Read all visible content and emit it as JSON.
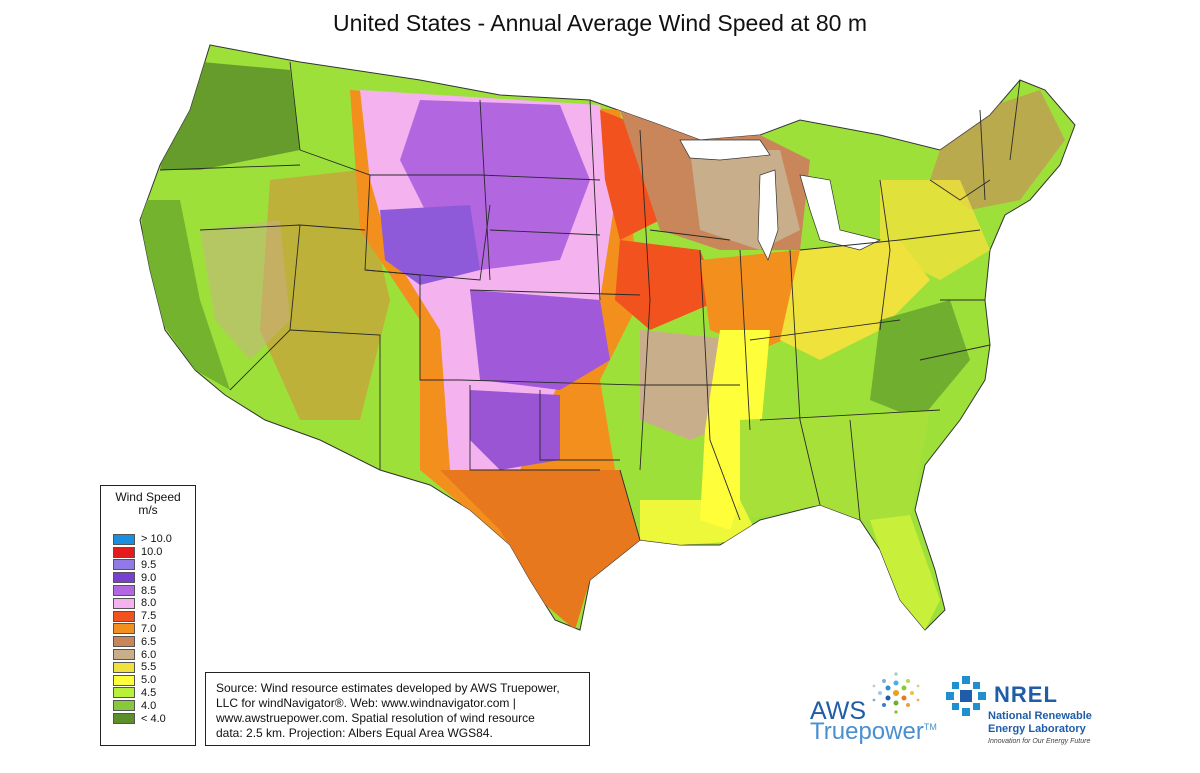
{
  "title": "United States - Annual Average Wind Speed at 80 m",
  "legend": {
    "heading_line1": "Wind Speed",
    "heading_line2": "m/s",
    "items": [
      {
        "label": "> 10.0",
        "color": "#1a8fe0"
      },
      {
        "label": "10.0",
        "color": "#e51a1a"
      },
      {
        "label": "9.5",
        "color": "#8f7ae6"
      },
      {
        "label": "9.0",
        "color": "#7a3fd1"
      },
      {
        "label": "8.5",
        "color": "#b266e0"
      },
      {
        "label": "8.0",
        "color": "#f4b3ef"
      },
      {
        "label": "7.5",
        "color": "#f2521d"
      },
      {
        "label": "7.0",
        "color": "#f28f1d"
      },
      {
        "label": "6.5",
        "color": "#c9865a"
      },
      {
        "label": "6.0",
        "color": "#c9ae8c"
      },
      {
        "label": "5.5",
        "color": "#f0e23c"
      },
      {
        "label": "5.0",
        "color": "#fffe3a"
      },
      {
        "label": "4.5",
        "color": "#b9f03a"
      },
      {
        "label": "4.0",
        "color": "#86c93a"
      },
      {
        "label": "< 4.0",
        "color": "#5c8f2a"
      }
    ]
  },
  "source": {
    "line1": "Source: Wind resource estimates developed by AWS Truepower,",
    "line2": "LLC for windNavigator®. Web: www.windnavigator.com |",
    "line3": "www.awstruepower.com. Spatial resolution of wind resource",
    "line4": "data: 2.5 km. Projection: Albers Equal Area WGS84."
  },
  "logos": {
    "aws_word": "AWS",
    "aws_sub": "Truepower",
    "aws_tm": "TM",
    "nrel_word": "NREL",
    "nrel_line1": "National Renewable",
    "nrel_line2": "Energy Laboratory",
    "nrel_tagline": "Innovation for Our Energy Future"
  }
}
